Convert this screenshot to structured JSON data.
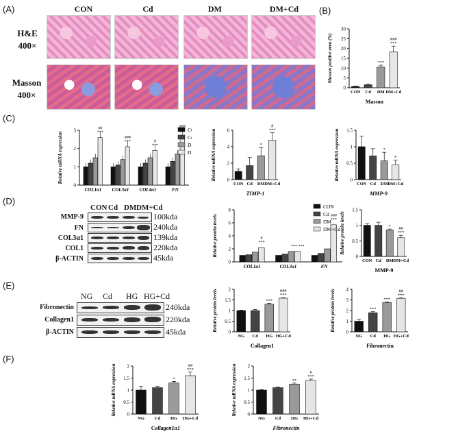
{
  "panel_letters": {
    "A": "(A)",
    "B": "(B)",
    "C": "(C)",
    "D": "(D)",
    "E": "(E)",
    "F": "(F)"
  },
  "histology": {
    "groups": [
      "CON",
      "Cd",
      "DM",
      "DM+Cd"
    ],
    "rows": [
      {
        "line1": "H&E",
        "line2": "400×"
      },
      {
        "line1": "Masson",
        "line2": "400×"
      }
    ]
  },
  "blot_D": {
    "lanes": [
      "CON",
      "Cd",
      "DM",
      "DM+Cd"
    ],
    "proteins": [
      "MMP-9",
      "FN",
      "COL3α1",
      "COL1",
      "β-ACTIN"
    ],
    "sizes": [
      "100kda",
      "240kda",
      "139kda",
      "220kda",
      "45kda"
    ]
  },
  "blot_E": {
    "lanes": [
      "NG",
      "Cd",
      "HG",
      "HG+Cd"
    ],
    "proteins": [
      "Fibronectin",
      "Collagen1",
      "β-ACTIN"
    ],
    "sizes": [
      "240kda",
      "220kda",
      "45kda"
    ]
  },
  "colors": {
    "black": "#111111",
    "dark": "#444444",
    "gray": "#9a9a9a",
    "light": "#e6e6e6"
  },
  "chart_data": [
    {
      "id": "B",
      "type": "bar",
      "title": "",
      "xlabel": "Masson",
      "ylabel": "Masson positive area (%)",
      "categories": [
        "CON",
        "Cd",
        "DM",
        "DM+Cd"
      ],
      "values": [
        0.6,
        1.5,
        10.5,
        18.2
      ],
      "errors": [
        0.2,
        0.3,
        1.0,
        3.0
      ],
      "ylim": [
        0,
        30
      ],
      "yticks": [
        0,
        5,
        10,
        15,
        20,
        25,
        30
      ],
      "annotations": [
        "",
        "",
        "***",
        "###\n***"
      ]
    },
    {
      "id": "C1",
      "type": "bar",
      "xlabel": "",
      "ylabel": "Relative mRNA expression",
      "categories": [
        "COL1α1",
        "COL3α1",
        "COL4α1",
        "FN"
      ],
      "series": [
        {
          "name": "CON",
          "values": [
            1.0,
            1.0,
            1.0,
            1.0
          ]
        },
        {
          "name": "Cd",
          "values": [
            1.2,
            1.1,
            1.2,
            1.3
          ]
        },
        {
          "name": "DM",
          "values": [
            1.5,
            1.4,
            1.5,
            1.7
          ]
        },
        {
          "name": "DM+Cd",
          "values": [
            2.6,
            2.1,
            1.9,
            2.7
          ]
        }
      ],
      "errors": [
        0.2,
        0.2,
        0.2,
        0.3
      ],
      "ylim": [
        0,
        3
      ],
      "yticks": [
        0,
        1,
        2,
        3
      ],
      "annotations": [
        "##\n***",
        "###\n***",
        "#\n***",
        "###\n***"
      ]
    },
    {
      "id": "C2",
      "type": "bar",
      "xlabel": "TIMP-1",
      "ylabel": "Relative mRNA expression",
      "categories": [
        "CON",
        "Cd",
        "DM",
        "DM+Cd"
      ],
      "values": [
        1.0,
        1.7,
        2.9,
        4.8
      ],
      "errors": [
        0.3,
        1.0,
        1.0,
        0.9
      ],
      "ylim": [
        0,
        6
      ],
      "yticks": [
        0,
        2,
        4,
        6
      ],
      "annotations": [
        "",
        "",
        "*",
        "#\n***"
      ]
    },
    {
      "id": "C3",
      "type": "bar",
      "xlabel": "MMP-9",
      "ylabel": "Relative mRNA expression",
      "categories": [
        "CON",
        "Cd",
        "DM",
        "DM+Cd"
      ],
      "values": [
        1.0,
        0.72,
        0.57,
        0.45
      ],
      "errors": [
        0.32,
        0.22,
        0.26,
        0.14
      ],
      "ylim": [
        0,
        1.5
      ],
      "yticks": [
        0,
        0.5,
        1.0,
        1.5
      ],
      "annotations": [
        "",
        "",
        "*",
        "*"
      ]
    },
    {
      "id": "D1",
      "type": "bar",
      "xlabel": "",
      "ylabel": "Relative protein levels",
      "categories": [
        "COL1α1",
        "COL3α1",
        "FN"
      ],
      "series": [
        {
          "name": "CON",
          "values": [
            1.0,
            1.0,
            1.0
          ]
        },
        {
          "name": "Cd",
          "values": [
            1.1,
            1.2,
            1.3
          ]
        },
        {
          "name": "DM",
          "values": [
            1.5,
            1.6,
            2.0
          ]
        },
        {
          "name": "DM+Cd",
          "values": [
            2.2,
            1.6,
            5.7
          ]
        }
      ],
      "ylim": [
        0,
        8
      ],
      "yticks": [
        0,
        2,
        4,
        6,
        8
      ],
      "annotations": [
        "#\n***",
        "*** ***",
        "###\n***"
      ]
    },
    {
      "id": "D2",
      "type": "bar",
      "xlabel": "MMP-9",
      "ylabel": "Relative protein levels",
      "categories": [
        "CON",
        "Cd",
        "DM",
        "DM+Cd"
      ],
      "values": [
        1.0,
        1.0,
        0.85,
        0.6
      ],
      "errors": [
        0.05,
        0.1,
        0.03,
        0.08
      ],
      "ylim": [
        0,
        1.5
      ],
      "yticks": [
        0,
        0.5,
        1.0,
        1.5
      ],
      "annotations": [
        "",
        "",
        "*",
        "##\n***"
      ]
    },
    {
      "id": "E1",
      "type": "bar",
      "xlabel": "Collagen1",
      "ylabel": "Relative protein levels",
      "categories": [
        "NG",
        "Cd",
        "HG",
        "HG+Cd"
      ],
      "values": [
        1.0,
        1.0,
        1.3,
        1.58
      ],
      "errors": [
        0.02,
        0.05,
        0.04,
        0.03
      ],
      "ylim": [
        0,
        2.0
      ],
      "yticks": [
        0,
        0.5,
        1.0,
        1.5,
        2.0
      ],
      "annotations": [
        "",
        "",
        "***",
        "###\n***"
      ]
    },
    {
      "id": "E2",
      "type": "bar",
      "xlabel": "Fibronectin",
      "ylabel": "Relative protein levels",
      "categories": [
        "NG",
        "Cd",
        "HG",
        "HG+Cd"
      ],
      "values": [
        1.0,
        1.8,
        2.75,
        3.15
      ],
      "errors": [
        0.2,
        0.1,
        0.05,
        0.05
      ],
      "ylim": [
        0,
        4
      ],
      "yticks": [
        0,
        1,
        2,
        3,
        4
      ],
      "annotations": [
        "",
        "***",
        "***",
        "##\n***"
      ]
    },
    {
      "id": "F1",
      "type": "bar",
      "xlabel": "Collagen1α1",
      "ylabel": "Relative mRNA expression",
      "categories": [
        "NG",
        "Cd",
        "HG",
        "HG+Cd"
      ],
      "values": [
        1.0,
        1.1,
        1.3,
        1.6
      ],
      "errors": [
        0.15,
        0.06,
        0.06,
        0.15
      ],
      "ylim": [
        0,
        2.0
      ],
      "yticks": [
        0,
        0.5,
        1.0,
        1.5,
        2.0
      ],
      "annotations": [
        "",
        "",
        "*",
        "##\n***"
      ]
    },
    {
      "id": "F2",
      "type": "bar",
      "xlabel": "Fibronectin",
      "ylabel": "Relative mRNA expression",
      "categories": [
        "NG",
        "Cd",
        "HG",
        "HG+Cd"
      ],
      "values": [
        1.0,
        1.1,
        1.25,
        1.4
      ],
      "errors": [
        0.02,
        0.03,
        0.04,
        0.06
      ],
      "ylim": [
        0,
        2.0
      ],
      "yticks": [
        0,
        0.5,
        1.0,
        1.5,
        2.0
      ],
      "annotations": [
        "",
        "",
        "**",
        "#\n***"
      ]
    }
  ]
}
